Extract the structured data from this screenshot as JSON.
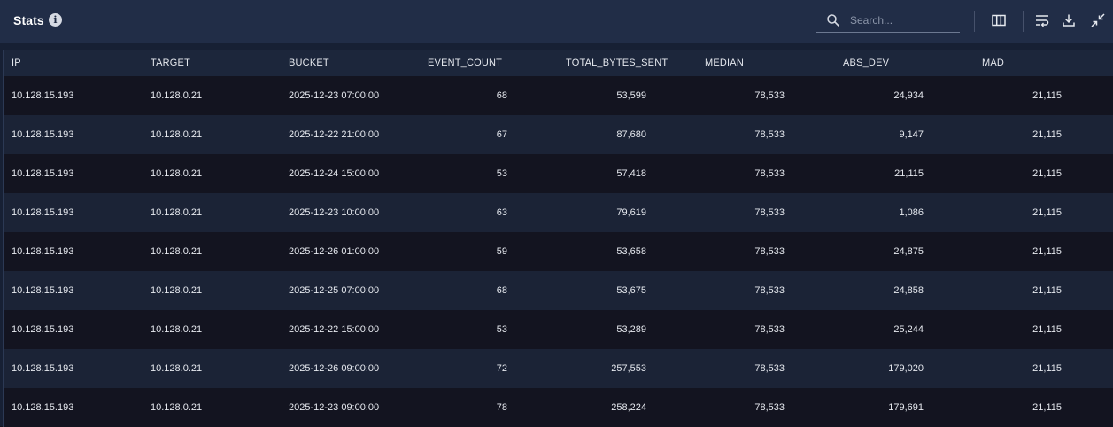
{
  "header": {
    "title": "Stats",
    "info_glyph": "i",
    "search_placeholder": "Search...",
    "tools": [
      "columns-icon",
      "wrap-text-icon",
      "download-icon",
      "collapse-icon"
    ]
  },
  "table": {
    "columns": [
      "IP",
      "TARGET",
      "BUCKET",
      "EVENT_COUNT",
      "TOTAL_BYTES_SENT",
      "MEDIAN",
      "ABS_DEV",
      "MAD"
    ],
    "rows": [
      [
        "10.128.15.193",
        "10.128.0.21",
        "2025-12-23 07:00:00",
        "68",
        "53,599",
        "78,533",
        "24,934",
        "21,115"
      ],
      [
        "10.128.15.193",
        "10.128.0.21",
        "2025-12-22 21:00:00",
        "67",
        "87,680",
        "78,533",
        "9,147",
        "21,115"
      ],
      [
        "10.128.15.193",
        "10.128.0.21",
        "2025-12-24 15:00:00",
        "53",
        "57,418",
        "78,533",
        "21,115",
        "21,115"
      ],
      [
        "10.128.15.193",
        "10.128.0.21",
        "2025-12-23 10:00:00",
        "63",
        "79,619",
        "78,533",
        "1,086",
        "21,115"
      ],
      [
        "10.128.15.193",
        "10.128.0.21",
        "2025-12-26 01:00:00",
        "59",
        "53,658",
        "78,533",
        "24,875",
        "21,115"
      ],
      [
        "10.128.15.193",
        "10.128.0.21",
        "2025-12-25 07:00:00",
        "68",
        "53,675",
        "78,533",
        "24,858",
        "21,115"
      ],
      [
        "10.128.15.193",
        "10.128.0.21",
        "2025-12-22 15:00:00",
        "53",
        "53,289",
        "78,533",
        "25,244",
        "21,115"
      ],
      [
        "10.128.15.193",
        "10.128.0.21",
        "2025-12-26 09:00:00",
        "72",
        "257,553",
        "78,533",
        "179,020",
        "21,115"
      ],
      [
        "10.128.15.193",
        "10.128.0.21",
        "2025-12-23 09:00:00",
        "78",
        "258,224",
        "78,533",
        "179,691",
        "21,115"
      ]
    ]
  },
  "colors": {
    "header_bg": "#212d47",
    "row_odd": "#131420",
    "row_even": "#1b2336",
    "text": "#e6e9ef"
  }
}
